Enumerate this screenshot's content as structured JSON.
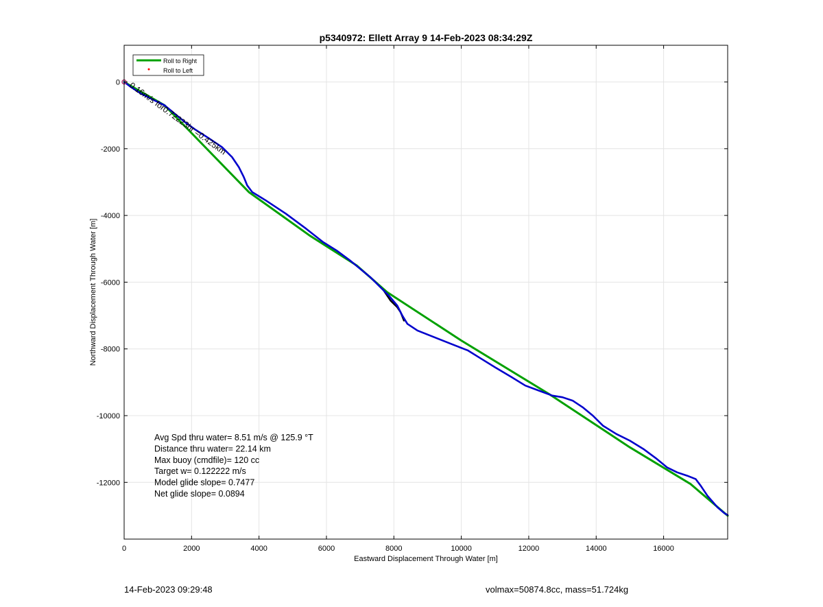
{
  "chart_data": {
    "type": "line",
    "title": "p5340972: Ellett Array 9 14-Feb-2023 08:34:29Z",
    "xlabel": "Eastward Displacement Through Water [m]",
    "ylabel": "Northward Displacement Through Water [m]",
    "xlim": [
      0,
      17900
    ],
    "ylim": [
      -13700,
      1100
    ],
    "xticks": [
      0,
      2000,
      4000,
      6000,
      8000,
      10000,
      12000,
      14000,
      16000
    ],
    "yticks": [
      0,
      -2000,
      -4000,
      -6000,
      -8000,
      -10000,
      -12000
    ],
    "xtick_labels": [
      "0",
      "2000",
      "4000",
      "6000",
      "8000",
      "10000",
      "12000",
      "14000",
      "16000"
    ],
    "ytick_labels": [
      "0",
      "-2000",
      "-4000",
      "-6000",
      "-8000",
      "-10000",
      "-12000"
    ],
    "grid": true,
    "legend": {
      "location": "top-left",
      "entries": [
        {
          "label": "Roll to Right",
          "color": "#00a000",
          "style": "line"
        },
        {
          "label": "Roll to Left",
          "color": "#ff0000",
          "style": "dot"
        }
      ]
    },
    "series": [
      {
        "name": "Roll to Right",
        "color": "#00a000",
        "x": [
          0,
          1200,
          3700,
          5500,
          6900,
          7800,
          10000,
          12600,
          15000,
          16800,
          17900
        ],
        "y": [
          0,
          -700,
          -3300,
          -4600,
          -5500,
          -6300,
          -7750,
          -9350,
          -10950,
          -12050,
          -13000
        ]
      },
      {
        "color": "#000000",
        "x": [
          7700,
          7900,
          8100,
          8200,
          8300
        ],
        "y": [
          -6250,
          -6550,
          -6750,
          -6900,
          -7150
        ]
      },
      {
        "color": "#0000cc",
        "x": [
          0,
          200,
          500,
          900,
          1200,
          1500,
          1800,
          2100,
          2500,
          2900,
          3200,
          3400,
          3550,
          3650,
          3800,
          4200,
          4800,
          5400,
          5900,
          6300,
          6700,
          7000,
          7300,
          7600,
          7850,
          8100,
          8250,
          8400,
          8700,
          9200,
          9700,
          10200,
          10600,
          11000,
          11500,
          11900,
          12300,
          12700,
          13000,
          13300,
          13600,
          13900,
          14200,
          14600,
          15000,
          15400,
          15800,
          16100,
          16400,
          16700,
          16950,
          17100,
          17300,
          17600,
          17800,
          17900
        ],
        "y": [
          0,
          -150,
          -350,
          -550,
          -700,
          -950,
          -1200,
          -1420,
          -1680,
          -1950,
          -2250,
          -2550,
          -2850,
          -3100,
          -3300,
          -3550,
          -3950,
          -4400,
          -4800,
          -5050,
          -5350,
          -5600,
          -5850,
          -6150,
          -6400,
          -6700,
          -7000,
          -7250,
          -7450,
          -7650,
          -7850,
          -8050,
          -8300,
          -8550,
          -8850,
          -9100,
          -9250,
          -9400,
          -9450,
          -9550,
          -9750,
          -10000,
          -10300,
          -10550,
          -10750,
          -11000,
          -11300,
          -11550,
          -11700,
          -11800,
          -11900,
          -12100,
          -12400,
          -12750,
          -12920,
          -12980
        ]
      }
    ],
    "markers": [
      {
        "label": "start",
        "x": 0,
        "y": 0,
        "color": "#b03070"
      },
      {
        "label": "legend-circle",
        "x": 1250,
        "y": 480,
        "color": "#b00000"
      }
    ],
    "annotations": {
      "rotated_label": "0.16m/s for0.72223hr =0.425km",
      "stats_lines": [
        "Avg Spd thru water=  8.51 m/s @ 125.9 °T",
        "Distance thru water= 22.14 km",
        "Max buoy (cmdfile)= 120 cc",
        "Target w= 0.122222 m/s",
        "Model glide slope= 0.7477",
        "Net glide slope= 0.0894"
      ]
    }
  },
  "footer": {
    "timestamp": "14-Feb-2023 09:29:48",
    "volmax_mass": "volmax=50874.8cc, mass=51.724kg"
  }
}
